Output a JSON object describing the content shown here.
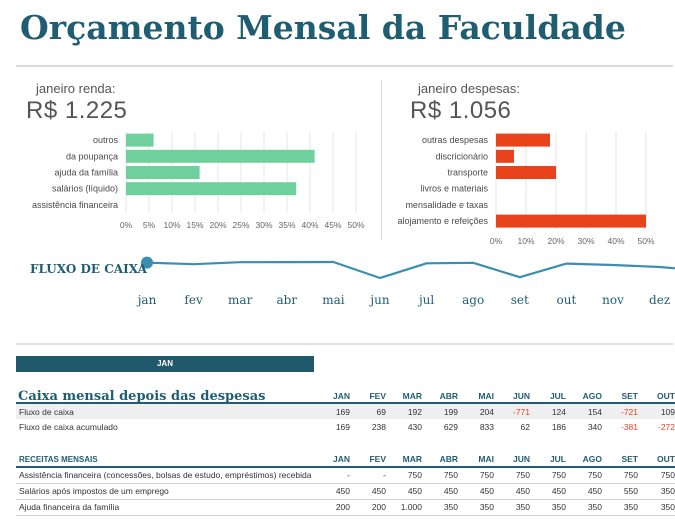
{
  "title": "Orçamento Mensal da Faculdade",
  "income_panel": {
    "label": "janeiro renda:",
    "value": "R$ 1.225",
    "color": "#6fcf9d",
    "chart_data": {
      "type": "bar",
      "orientation": "horizontal",
      "categories": [
        "outros",
        "da poupança",
        "ajuda da família",
        "salários (líquido)",
        "assistência financeira"
      ],
      "values": [
        6,
        41,
        16,
        37,
        0
      ],
      "xlim": [
        0,
        50
      ],
      "xticks": [
        "0%",
        "5%",
        "10%",
        "15%",
        "20%",
        "25%",
        "30%",
        "35%",
        "40%",
        "45%",
        "50%"
      ],
      "grid": true
    }
  },
  "expense_panel": {
    "label": "janeiro despesas:",
    "value": "R$ 1.056",
    "color": "#e8431b",
    "chart_data": {
      "type": "bar",
      "orientation": "horizontal",
      "categories": [
        "outras despesas",
        "discricionário",
        "transporte",
        "livros e materiais",
        "mensalidade e taxas",
        "alojamento e refeições"
      ],
      "values": [
        18,
        6,
        20,
        0,
        0,
        50
      ],
      "xlim": [
        0,
        55
      ],
      "xticks": [
        "0%",
        "10%",
        "20%",
        "30%",
        "40%",
        "50%"
      ],
      "grid": true
    }
  },
  "cash_flow": {
    "title": "FLUXO DE CAIXA",
    "color": "#3a8fb0",
    "chart_data": {
      "type": "line",
      "x": [
        "jan",
        "fev",
        "mar",
        "abr",
        "mai",
        "jun",
        "jul",
        "ago",
        "set",
        "out",
        "nov",
        "dez"
      ],
      "values": [
        169,
        69,
        192,
        199,
        204,
        -771,
        124,
        154,
        -721,
        109,
        20,
        -100
      ],
      "marker_first": true
    }
  },
  "tab": {
    "label": "JAN"
  },
  "monthly": {
    "title": "Caixa mensal depois das despesas",
    "months": [
      "JAN",
      "FEV",
      "MAR",
      "ABR",
      "MAI",
      "JUN",
      "JUL",
      "AGO",
      "SET",
      "OUT"
    ],
    "rows": [
      {
        "label": "Fluxo de caixa",
        "values": [
          "169",
          "69",
          "192",
          "199",
          "204",
          "-771",
          "124",
          "154",
          "-721",
          "109"
        ]
      },
      {
        "label": "Fluxo de caixa acumulado",
        "values": [
          "169",
          "238",
          "430",
          "629",
          "833",
          "62",
          "186",
          "340",
          "-381",
          "-272"
        ]
      }
    ]
  },
  "income": {
    "title": "RECEITAS MENSAIS",
    "months": [
      "JAN",
      "FEV",
      "MAR",
      "ABR",
      "MAI",
      "JUN",
      "JUL",
      "AGO",
      "SET",
      "OUT"
    ],
    "rows": [
      {
        "label": "Assistência financeira (concessões, bolsas de estudo, empréstimos) recebida",
        "values": [
          "-",
          "-",
          "750",
          "750",
          "750",
          "750",
          "750",
          "750",
          "750",
          "750"
        ]
      },
      {
        "label": "Salários após impostos de um emprego",
        "values": [
          "450",
          "450",
          "450",
          "450",
          "450",
          "450",
          "450",
          "450",
          "550",
          "350"
        ]
      },
      {
        "label": "Ajuda financeira da família",
        "values": [
          "200",
          "200",
          "1.000",
          "350",
          "350",
          "350",
          "350",
          "350",
          "350",
          "350"
        ]
      }
    ]
  }
}
